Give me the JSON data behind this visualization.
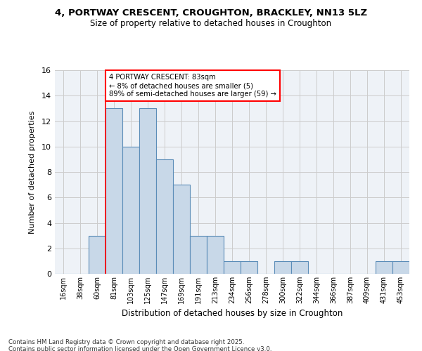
{
  "title": "4, PORTWAY CRESCENT, CROUGHTON, BRACKLEY, NN13 5LZ",
  "subtitle": "Size of property relative to detached houses in Croughton",
  "xlabel": "Distribution of detached houses by size in Croughton",
  "ylabel": "Number of detached properties",
  "categories": [
    "16sqm",
    "38sqm",
    "60sqm",
    "81sqm",
    "103sqm",
    "125sqm",
    "147sqm",
    "169sqm",
    "191sqm",
    "213sqm",
    "234sqm",
    "256sqm",
    "278sqm",
    "300sqm",
    "322sqm",
    "344sqm",
    "366sqm",
    "387sqm",
    "409sqm",
    "431sqm",
    "453sqm"
  ],
  "values": [
    0,
    0,
    3,
    13,
    10,
    13,
    9,
    7,
    3,
    3,
    1,
    1,
    0,
    1,
    1,
    0,
    0,
    0,
    0,
    1,
    1
  ],
  "bar_color": "#c8d8e8",
  "bar_edge_color": "#5b8db8",
  "red_line_index": 3,
  "annotation_text": "4 PORTWAY CRESCENT: 83sqm\n← 8% of detached houses are smaller (5)\n89% of semi-detached houses are larger (59) →",
  "annotation_box_color": "white",
  "annotation_box_edge_color": "red",
  "ylim": [
    0,
    16
  ],
  "yticks": [
    0,
    2,
    4,
    6,
    8,
    10,
    12,
    14,
    16
  ],
  "grid_color": "#cccccc",
  "background_color": "#eef2f7",
  "footer_text": "Contains HM Land Registry data © Crown copyright and database right 2025.\nContains public sector information licensed under the Open Government Licence v3.0."
}
